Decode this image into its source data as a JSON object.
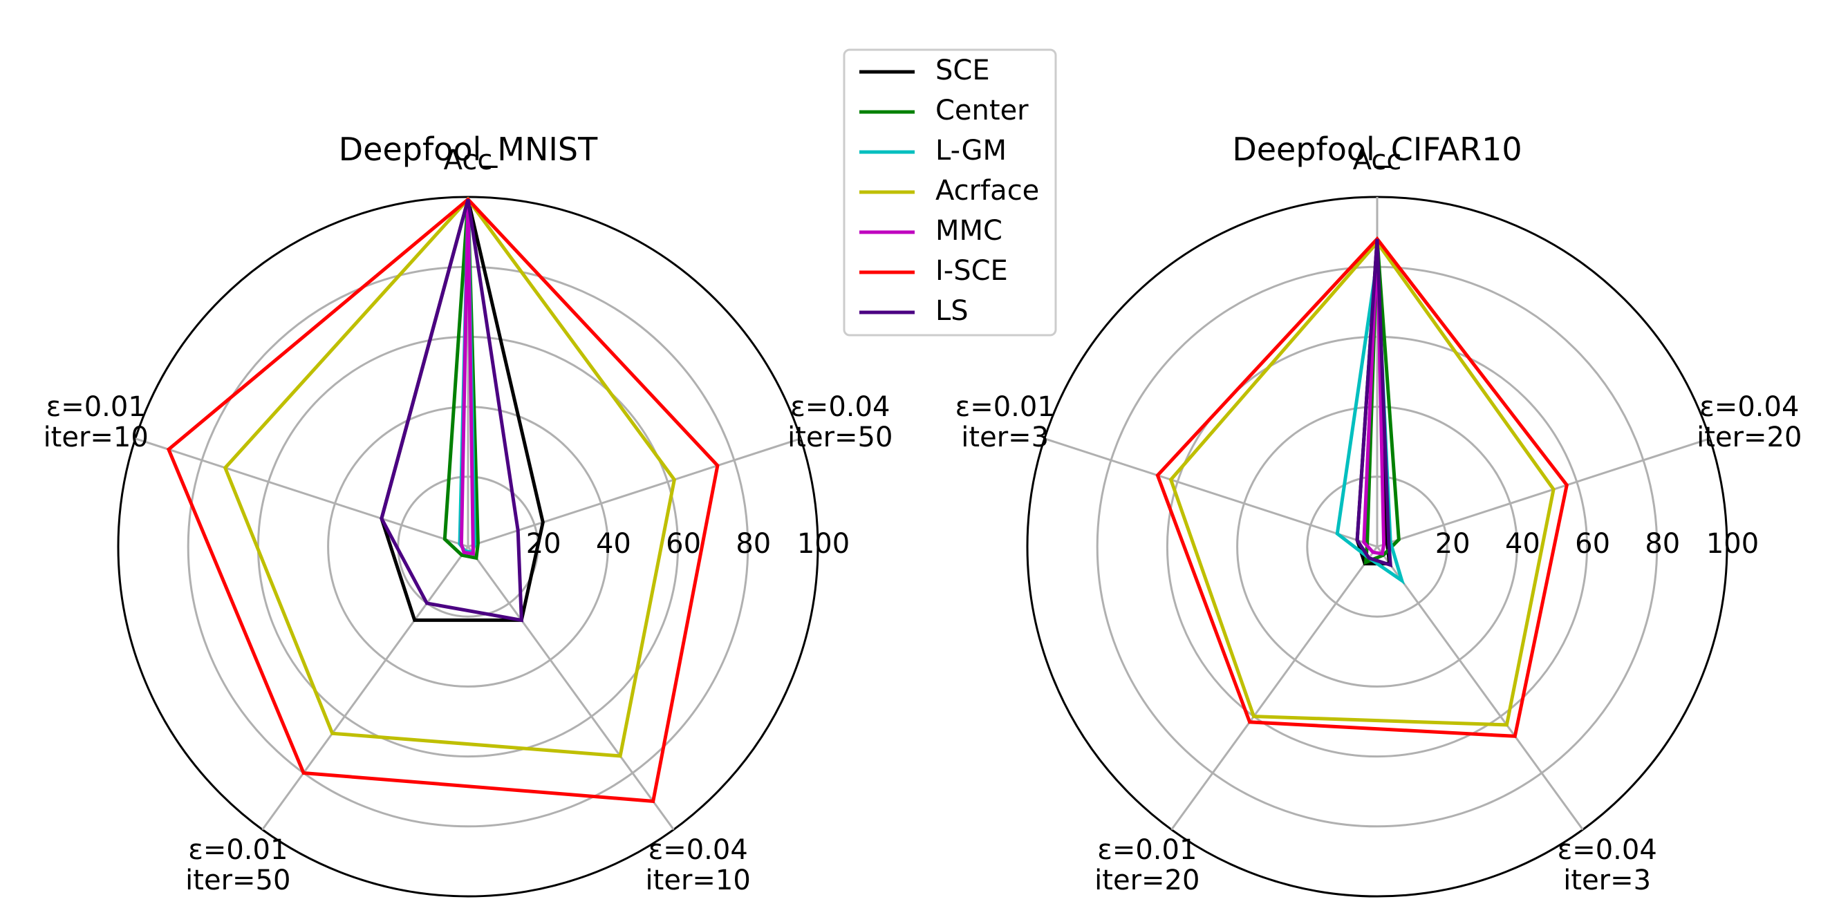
{
  "chart_data": [
    {
      "type": "radar",
      "title": "Deepfool_MNIST",
      "axes": [
        {
          "lines": [
            "Acc"
          ]
        },
        {
          "lines": [
            "ε=0.04",
            "iter=50"
          ]
        },
        {
          "lines": [
            "ε=0.04",
            "iter=10"
          ]
        },
        {
          "lines": [
            "ε=0.01",
            "iter=50"
          ]
        },
        {
          "lines": [
            "ε=0.01",
            "iter=10"
          ]
        }
      ],
      "rlim": [
        0,
        100
      ],
      "rticks": [
        "20",
        "40",
        "60",
        "80",
        "100"
      ],
      "series": [
        {
          "name": "SCE",
          "color": "#000000",
          "values": [
            99.3,
            22.5,
            26.0,
            26.0,
            26.0
          ]
        },
        {
          "name": "Center",
          "color": "#008000",
          "values": [
            99.3,
            3.0,
            4.0,
            3.0,
            7.0
          ]
        },
        {
          "name": "L-GM",
          "color": "#00bfbf",
          "values": [
            99.3,
            2.0,
            2.0,
            1.5,
            2.5
          ]
        },
        {
          "name": "Acrface",
          "color": "#bfbf00",
          "values": [
            99.3,
            62.0,
            74.0,
            66.0,
            73.0
          ]
        },
        {
          "name": "MMC",
          "color": "#bf00bf",
          "values": [
            99.3,
            1.5,
            2.5,
            2.0,
            2.0
          ]
        },
        {
          "name": "I-SCE",
          "color": "#ff0000",
          "values": [
            99.3,
            75.0,
            90.0,
            80.0,
            90.0
          ]
        },
        {
          "name": "LS",
          "color": "#4b0082",
          "values": [
            99.3,
            15.0,
            26.0,
            20.0,
            26.0
          ]
        }
      ]
    },
    {
      "type": "radar",
      "title": "Deepfool_CIFAR10",
      "axes": [
        {
          "lines": [
            "Acc"
          ]
        },
        {
          "lines": [
            "ε=0.04",
            "iter=20"
          ]
        },
        {
          "lines": [
            "ε=0.04",
            "iter=3"
          ]
        },
        {
          "lines": [
            "ε=0.01",
            "iter=20"
          ]
        },
        {
          "lines": [
            "ε=0.01",
            "iter=3"
          ]
        }
      ],
      "rlim": [
        0,
        100
      ],
      "rticks": [
        "20",
        "40",
        "60",
        "80",
        "100"
      ],
      "series": [
        {
          "name": "SCE",
          "color": "#000000",
          "values": [
            88.0,
            3.0,
            6.0,
            6.0,
            6.0
          ]
        },
        {
          "name": "Center",
          "color": "#008000",
          "values": [
            88.0,
            6.5,
            3.0,
            5.5,
            3.0
          ]
        },
        {
          "name": "L-GM",
          "color": "#00bfbf",
          "values": [
            82.0,
            4.0,
            12.0,
            4.0,
            12.0
          ]
        },
        {
          "name": "Acrface",
          "color": "#bfbf00",
          "values": [
            87.0,
            53.0,
            63.0,
            60.0,
            62.0
          ]
        },
        {
          "name": "MMC",
          "color": "#bf00bf",
          "values": [
            87.0,
            2.0,
            2.5,
            2.0,
            4.0
          ]
        },
        {
          "name": "I-SCE",
          "color": "#ff0000",
          "values": [
            88.0,
            57.0,
            67.0,
            62.0,
            66.0
          ]
        },
        {
          "name": "LS",
          "color": "#4b0082",
          "values": [
            88.0,
            3.5,
            6.5,
            4.0,
            6.0
          ]
        }
      ]
    }
  ],
  "legend": {
    "placement": "top-center",
    "entries": [
      {
        "name": "SCE",
        "color": "#000000"
      },
      {
        "name": "Center",
        "color": "#008000"
      },
      {
        "name": "L-GM",
        "color": "#00bfbf"
      },
      {
        "name": "Acrface",
        "color": "#bfbf00"
      },
      {
        "name": "MMC",
        "color": "#bf00bf"
      },
      {
        "name": "I-SCE",
        "color": "#ff0000"
      },
      {
        "name": "LS",
        "color": "#4b0082"
      }
    ]
  }
}
